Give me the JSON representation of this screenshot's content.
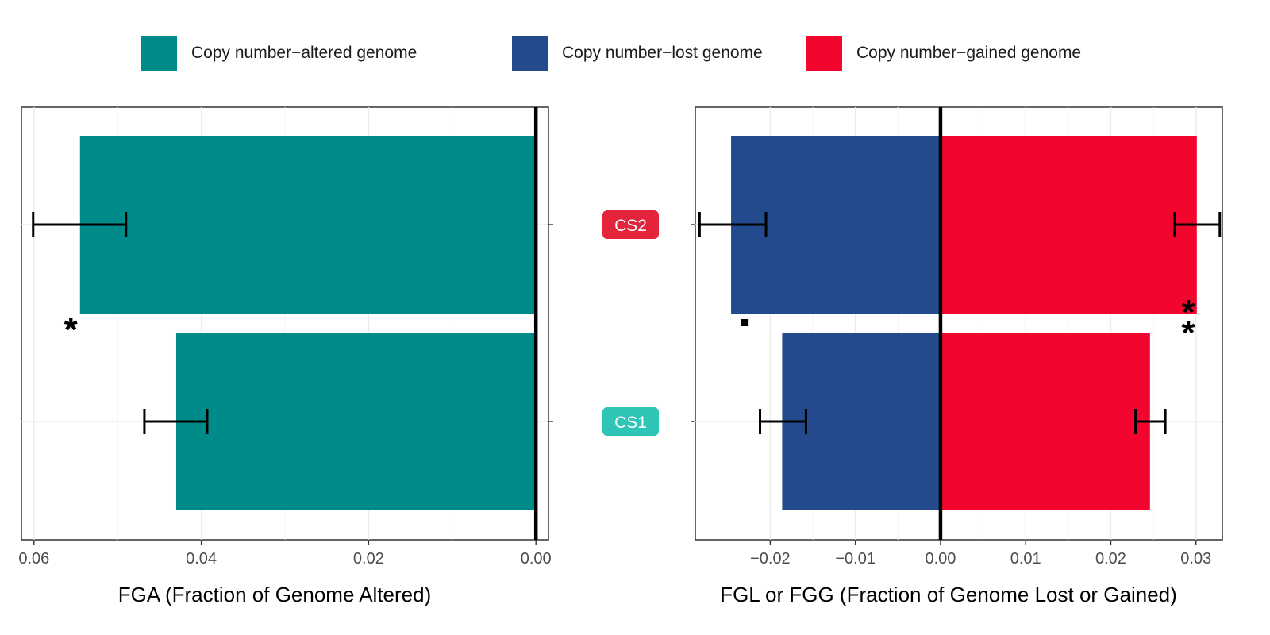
{
  "legend": [
    {
      "label": "Copy number−altered genome",
      "color": "#008B8B"
    },
    {
      "label": "Copy number−lost genome",
      "color": "#224A8C"
    },
    {
      "label": "Copy number−gained genome",
      "color": "#F2062E"
    }
  ],
  "chart_data": [
    {
      "type": "bar",
      "orientation": "horizontal",
      "xlabel": "FGA (Fraction of Genome Altered)",
      "x_reversed": true,
      "xlim": [
        0.0615,
        -0.0015
      ],
      "x_ticks": [
        0.06,
        0.04,
        0.02,
        0.0
      ],
      "x_tick_labels": [
        "0.06",
        "0.04",
        "0.02",
        "0.00"
      ],
      "categories": [
        "CS2",
        "CS1"
      ],
      "series": [
        {
          "name": "Copy number−altered genome",
          "color": "#008B8B",
          "values": [
            0.0545,
            0.043
          ],
          "error_low": [
            0.049,
            0.0393
          ],
          "error_high": [
            0.0601,
            0.0468
          ]
        }
      ],
      "annotations": [
        {
          "category": "CS2",
          "text": "*",
          "x": 0.0556
        }
      ]
    },
    {
      "type": "bar",
      "orientation": "horizontal",
      "stacked": "diverging",
      "xlabel": "FGL or FGG (Fraction of Genome Lost or Gained)",
      "xlim": [
        -0.0288,
        0.0331
      ],
      "x_ticks": [
        -0.02,
        -0.01,
        0.0,
        0.01,
        0.02,
        0.03
      ],
      "x_tick_labels": [
        "−0.02",
        "−0.01",
        "0.00",
        "0.01",
        "0.02",
        "0.03"
      ],
      "categories": [
        "CS2",
        "CS1"
      ],
      "series": [
        {
          "name": "Copy number−lost genome",
          "color": "#224A8C",
          "values": [
            -0.0246,
            -0.0186
          ],
          "error_low": [
            -0.0283,
            -0.0212
          ],
          "error_high": [
            -0.0205,
            -0.0158
          ]
        },
        {
          "name": "Copy number−gained genome",
          "color": "#F2062E",
          "values": [
            0.0301,
            0.0246
          ],
          "error_low": [
            0.0275,
            0.0229
          ],
          "error_high": [
            0.0328,
            0.0264
          ]
        }
      ],
      "annotations": [
        {
          "category": "CS2",
          "series": "lost",
          "text": ".",
          "x": -0.0231
        },
        {
          "category": "CS2",
          "series": "gained",
          "text": "**",
          "x": 0.0291
        }
      ]
    }
  ],
  "badges": [
    {
      "label": "CS2",
      "color": "#E3243B"
    },
    {
      "label": "CS1",
      "color": "#2EC4B6"
    }
  ]
}
